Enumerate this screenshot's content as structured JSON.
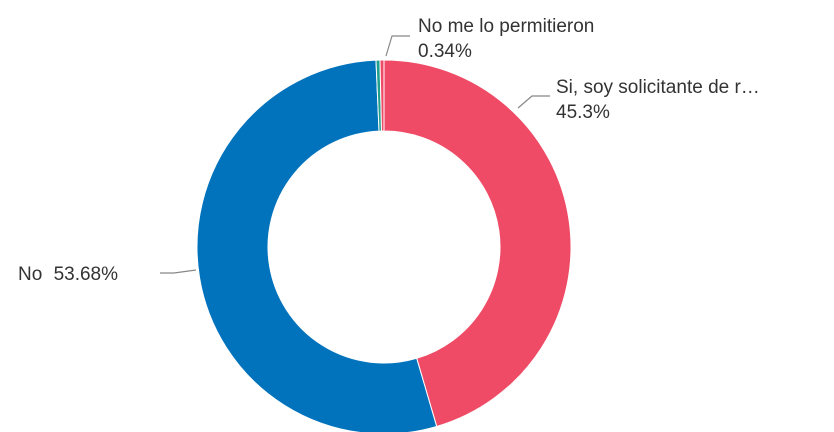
{
  "chart_data": {
    "type": "pie",
    "style": "donut",
    "title": "",
    "categories": [
      "Si, soy solicitante de r…",
      "No",
      "(sin etiqueta)",
      "No me lo permitieron"
    ],
    "values": [
      45.3,
      53.68,
      0.34,
      0.34
    ],
    "value_labels": [
      "45.3%",
      "53.68%",
      "",
      "0.34%"
    ],
    "colors": [
      "#EF4B66",
      "#0172BC",
      "#1E9E8C",
      "#EF4B66"
    ],
    "labels_shown": [
      true,
      true,
      false,
      true
    ],
    "grid": false,
    "legend": "none"
  }
}
